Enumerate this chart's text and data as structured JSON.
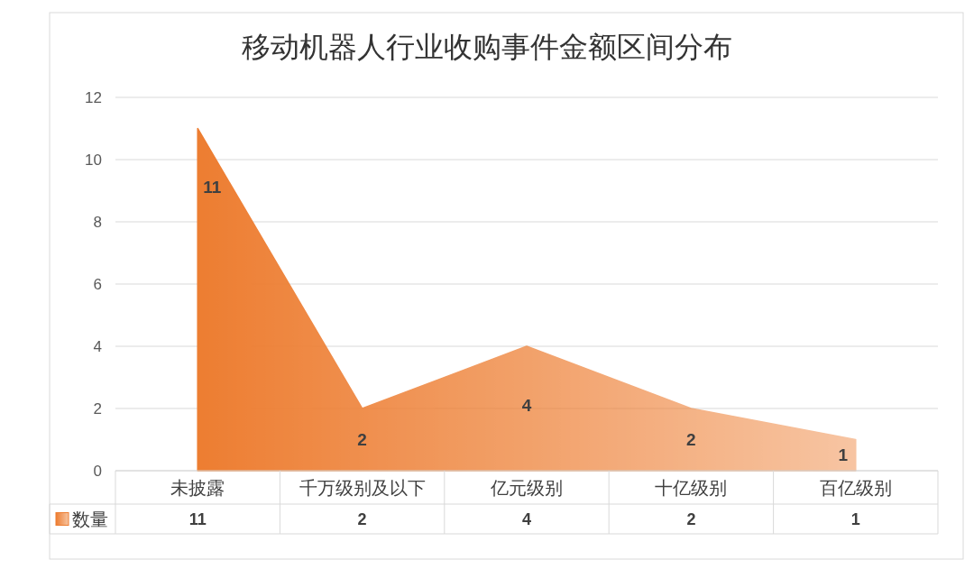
{
  "chart_data": {
    "type": "area",
    "title": "移动机器人行业收购事件金额区间分布",
    "categories": [
      "未披露",
      "千万级别及以下",
      "亿元级别",
      "十亿级别",
      "百亿级别"
    ],
    "series": [
      {
        "name": "数量",
        "color": "#ed7d31",
        "values": [
          11,
          2,
          4,
          2,
          1
        ]
      }
    ],
    "ylim": [
      0,
      12
    ],
    "yticks": [
      0,
      2,
      4,
      6,
      8,
      10,
      12
    ],
    "grid": "y",
    "data_labels": true,
    "legend": "bottom",
    "annotations": [
      {
        "text": "11",
        "x": "未披露",
        "y": 11
      },
      {
        "text": "2",
        "x": "千万级别及以下",
        "y": 2
      },
      {
        "text": "4",
        "x": "亿元级别",
        "y": 4
      },
      {
        "text": "2",
        "x": "十亿级别",
        "y": 2
      },
      {
        "text": "1",
        "x": "百亿级别",
        "y": 1
      }
    ]
  }
}
